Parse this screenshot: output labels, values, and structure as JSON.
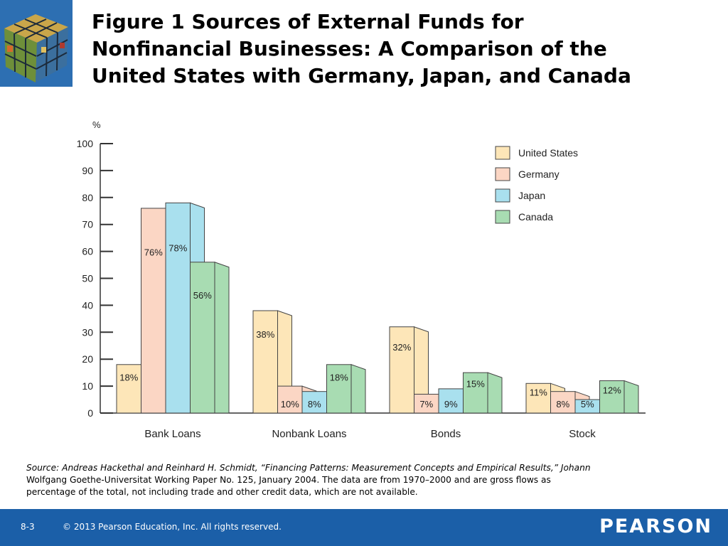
{
  "header": {
    "title_lines": [
      "Figure 1  Sources of External Funds for",
      "Nonfinancial Businesses: A Comparison of the",
      "United States with Germany, Japan, and Canada"
    ]
  },
  "colors": {
    "United States": "#fde6b8",
    "Germany": "#fbd6c4",
    "Japan": "#a9e0ee",
    "Canada": "#a8dcb2",
    "footer": "#1b5fa8"
  },
  "chart_data": {
    "type": "bar",
    "title": "",
    "xlabel": "",
    "ylabel": "%",
    "ylim": [
      0,
      100
    ],
    "yticks": [
      0,
      10,
      20,
      30,
      40,
      50,
      60,
      70,
      80,
      90,
      100
    ],
    "categories": [
      "Bank Loans",
      "Nonbank Loans",
      "Bonds",
      "Stock"
    ],
    "legend_position": "top-right",
    "series": [
      {
        "name": "United States",
        "values": [
          18,
          38,
          32,
          11
        ],
        "labels": [
          "18%",
          "38%",
          "32%",
          "11%"
        ]
      },
      {
        "name": "Germany",
        "values": [
          76,
          10,
          7,
          8
        ],
        "labels": [
          "76%",
          "10%",
          "7%",
          "8%"
        ]
      },
      {
        "name": "Japan",
        "values": [
          78,
          8,
          9,
          5
        ],
        "labels": [
          "78%",
          "8%",
          "9%",
          "5%"
        ]
      },
      {
        "name": "Canada",
        "values": [
          56,
          18,
          15,
          12
        ],
        "labels": [
          "56%",
          "18%",
          "15%",
          "12%"
        ]
      }
    ]
  },
  "source": {
    "line1": "Source: Andreas Hackethal and Reinhard H. Schmidt, “Financing Patterns: Measurement Concepts and Empirical Results,” Johann",
    "line2": "Wolfgang Goethe-Universitat Working Paper No. 125, January 2004. The data are from 1970–2000 and are gross flows as",
    "line3": "percentage of the total, not including trade and other credit data, which are not available."
  },
  "footer": {
    "page": "8-3",
    "copyright": "© 2013 Pearson Education, Inc. All rights reserved.",
    "brand": "PEARSON"
  }
}
